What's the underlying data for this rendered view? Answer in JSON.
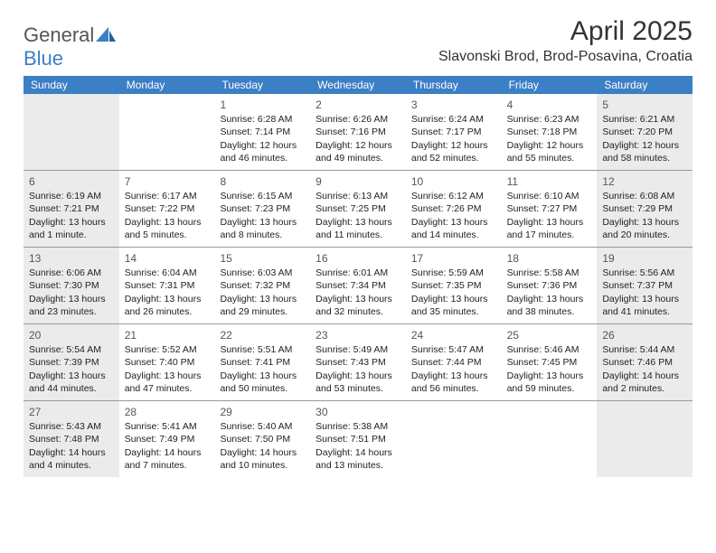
{
  "logo": {
    "word1": "General",
    "word2": "Blue"
  },
  "title": "April 2025",
  "location": "Slavonski Brod, Brod-Posavina, Croatia",
  "colors": {
    "header_bg": "#3b7fc4",
    "header_text": "#ffffff",
    "shaded_cell": "#ebebeb",
    "row_border": "#999999",
    "text": "#222222",
    "daynum": "#555555"
  },
  "day_labels": [
    "Sunday",
    "Monday",
    "Tuesday",
    "Wednesday",
    "Thursday",
    "Friday",
    "Saturday"
  ],
  "weeks": [
    [
      null,
      null,
      {
        "n": "1",
        "sr": "Sunrise: 6:28 AM",
        "ss": "Sunset: 7:14 PM",
        "dl": "Daylight: 12 hours and 46 minutes."
      },
      {
        "n": "2",
        "sr": "Sunrise: 6:26 AM",
        "ss": "Sunset: 7:16 PM",
        "dl": "Daylight: 12 hours and 49 minutes."
      },
      {
        "n": "3",
        "sr": "Sunrise: 6:24 AM",
        "ss": "Sunset: 7:17 PM",
        "dl": "Daylight: 12 hours and 52 minutes."
      },
      {
        "n": "4",
        "sr": "Sunrise: 6:23 AM",
        "ss": "Sunset: 7:18 PM",
        "dl": "Daylight: 12 hours and 55 minutes."
      },
      {
        "n": "5",
        "sr": "Sunrise: 6:21 AM",
        "ss": "Sunset: 7:20 PM",
        "dl": "Daylight: 12 hours and 58 minutes."
      }
    ],
    [
      {
        "n": "6",
        "sr": "Sunrise: 6:19 AM",
        "ss": "Sunset: 7:21 PM",
        "dl": "Daylight: 13 hours and 1 minute."
      },
      {
        "n": "7",
        "sr": "Sunrise: 6:17 AM",
        "ss": "Sunset: 7:22 PM",
        "dl": "Daylight: 13 hours and 5 minutes."
      },
      {
        "n": "8",
        "sr": "Sunrise: 6:15 AM",
        "ss": "Sunset: 7:23 PM",
        "dl": "Daylight: 13 hours and 8 minutes."
      },
      {
        "n": "9",
        "sr": "Sunrise: 6:13 AM",
        "ss": "Sunset: 7:25 PM",
        "dl": "Daylight: 13 hours and 11 minutes."
      },
      {
        "n": "10",
        "sr": "Sunrise: 6:12 AM",
        "ss": "Sunset: 7:26 PM",
        "dl": "Daylight: 13 hours and 14 minutes."
      },
      {
        "n": "11",
        "sr": "Sunrise: 6:10 AM",
        "ss": "Sunset: 7:27 PM",
        "dl": "Daylight: 13 hours and 17 minutes."
      },
      {
        "n": "12",
        "sr": "Sunrise: 6:08 AM",
        "ss": "Sunset: 7:29 PM",
        "dl": "Daylight: 13 hours and 20 minutes."
      }
    ],
    [
      {
        "n": "13",
        "sr": "Sunrise: 6:06 AM",
        "ss": "Sunset: 7:30 PM",
        "dl": "Daylight: 13 hours and 23 minutes."
      },
      {
        "n": "14",
        "sr": "Sunrise: 6:04 AM",
        "ss": "Sunset: 7:31 PM",
        "dl": "Daylight: 13 hours and 26 minutes."
      },
      {
        "n": "15",
        "sr": "Sunrise: 6:03 AM",
        "ss": "Sunset: 7:32 PM",
        "dl": "Daylight: 13 hours and 29 minutes."
      },
      {
        "n": "16",
        "sr": "Sunrise: 6:01 AM",
        "ss": "Sunset: 7:34 PM",
        "dl": "Daylight: 13 hours and 32 minutes."
      },
      {
        "n": "17",
        "sr": "Sunrise: 5:59 AM",
        "ss": "Sunset: 7:35 PM",
        "dl": "Daylight: 13 hours and 35 minutes."
      },
      {
        "n": "18",
        "sr": "Sunrise: 5:58 AM",
        "ss": "Sunset: 7:36 PM",
        "dl": "Daylight: 13 hours and 38 minutes."
      },
      {
        "n": "19",
        "sr": "Sunrise: 5:56 AM",
        "ss": "Sunset: 7:37 PM",
        "dl": "Daylight: 13 hours and 41 minutes."
      }
    ],
    [
      {
        "n": "20",
        "sr": "Sunrise: 5:54 AM",
        "ss": "Sunset: 7:39 PM",
        "dl": "Daylight: 13 hours and 44 minutes."
      },
      {
        "n": "21",
        "sr": "Sunrise: 5:52 AM",
        "ss": "Sunset: 7:40 PM",
        "dl": "Daylight: 13 hours and 47 minutes."
      },
      {
        "n": "22",
        "sr": "Sunrise: 5:51 AM",
        "ss": "Sunset: 7:41 PM",
        "dl": "Daylight: 13 hours and 50 minutes."
      },
      {
        "n": "23",
        "sr": "Sunrise: 5:49 AM",
        "ss": "Sunset: 7:43 PM",
        "dl": "Daylight: 13 hours and 53 minutes."
      },
      {
        "n": "24",
        "sr": "Sunrise: 5:47 AM",
        "ss": "Sunset: 7:44 PM",
        "dl": "Daylight: 13 hours and 56 minutes."
      },
      {
        "n": "25",
        "sr": "Sunrise: 5:46 AM",
        "ss": "Sunset: 7:45 PM",
        "dl": "Daylight: 13 hours and 59 minutes."
      },
      {
        "n": "26",
        "sr": "Sunrise: 5:44 AM",
        "ss": "Sunset: 7:46 PM",
        "dl": "Daylight: 14 hours and 2 minutes."
      }
    ],
    [
      {
        "n": "27",
        "sr": "Sunrise: 5:43 AM",
        "ss": "Sunset: 7:48 PM",
        "dl": "Daylight: 14 hours and 4 minutes."
      },
      {
        "n": "28",
        "sr": "Sunrise: 5:41 AM",
        "ss": "Sunset: 7:49 PM",
        "dl": "Daylight: 14 hours and 7 minutes."
      },
      {
        "n": "29",
        "sr": "Sunrise: 5:40 AM",
        "ss": "Sunset: 7:50 PM",
        "dl": "Daylight: 14 hours and 10 minutes."
      },
      {
        "n": "30",
        "sr": "Sunrise: 5:38 AM",
        "ss": "Sunset: 7:51 PM",
        "dl": "Daylight: 14 hours and 13 minutes."
      },
      null,
      null,
      null
    ]
  ]
}
